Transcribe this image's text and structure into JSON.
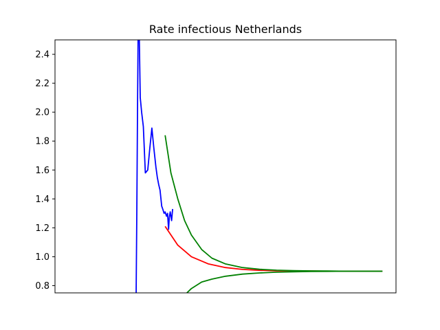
{
  "chart_data": {
    "type": "line",
    "title": "Rate infectious Netherlands",
    "xlabel": "",
    "ylabel": "",
    "xlim": [
      0,
      100
    ],
    "ylim": [
      0.75,
      2.5
    ],
    "x_ticks": [],
    "y_ticks": [
      0.8,
      1.0,
      1.2,
      1.4,
      1.6,
      1.8,
      2.0,
      2.2,
      2.4
    ],
    "y_tick_labels": [
      "0.8",
      "1.0",
      "1.2",
      "1.4",
      "1.6",
      "1.8",
      "2.0",
      "2.2",
      "2.4"
    ],
    "grid": false,
    "legend": "none",
    "series": [
      {
        "color": "#0000ff",
        "x": [
          23.8,
          24.0,
          24.2,
          24.4,
          24.7,
          25.0,
          25.4,
          25.9,
          26.5,
          27.2,
          27.8,
          28.4,
          29.0,
          29.6,
          30.0,
          30.4,
          30.8,
          31.3,
          31.6,
          32.0,
          32.3,
          32.7,
          33.0,
          33.3,
          33.5,
          33.8,
          34.2,
          34.5
        ],
        "values": [
          0.73,
          1.3,
          2.0,
          2.6,
          2.55,
          2.1,
          2.0,
          1.9,
          1.58,
          1.6,
          1.75,
          1.89,
          1.75,
          1.62,
          1.55,
          1.5,
          1.46,
          1.35,
          1.33,
          1.3,
          1.31,
          1.28,
          1.3,
          1.19,
          1.27,
          1.31,
          1.25,
          1.33
        ]
      },
      {
        "color": "#ff0000",
        "x": [
          32.3,
          36,
          40,
          45,
          50,
          55,
          60,
          65,
          70,
          75,
          80,
          85,
          90,
          96
        ],
        "values": [
          1.21,
          1.08,
          1.0,
          0.95,
          0.925,
          0.912,
          0.906,
          0.903,
          0.902,
          0.901,
          0.9,
          0.9,
          0.9,
          0.9
        ]
      },
      {
        "color": "#008000",
        "x": [
          32.3,
          34,
          36,
          38,
          40,
          43,
          46,
          50,
          55,
          60,
          65,
          70,
          75,
          80,
          85,
          90,
          96
        ],
        "values": [
          1.84,
          1.58,
          1.4,
          1.25,
          1.15,
          1.05,
          0.99,
          0.95,
          0.925,
          0.913,
          0.907,
          0.904,
          0.902,
          0.901,
          0.9,
          0.9,
          0.9
        ]
      },
      {
        "color": "#008000",
        "x": [
          37.8,
          40,
          43,
          46,
          50,
          55,
          60,
          65,
          70,
          75,
          80,
          85,
          90,
          96
        ],
        "values": [
          0.73,
          0.78,
          0.825,
          0.845,
          0.865,
          0.88,
          0.888,
          0.893,
          0.896,
          0.898,
          0.899,
          0.9,
          0.9,
          0.9
        ]
      }
    ]
  }
}
